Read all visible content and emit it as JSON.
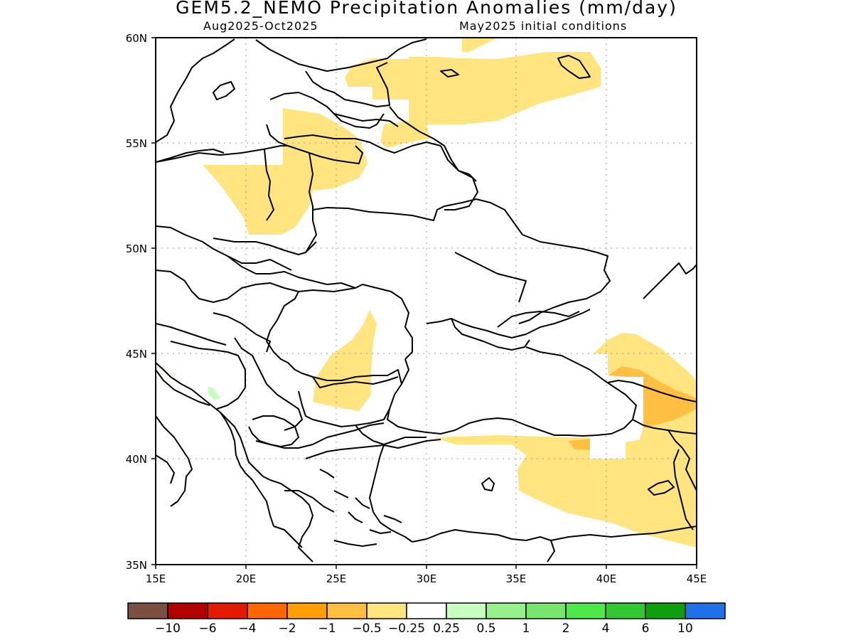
{
  "title": "GEM5.2_NEMO Precipitation Anomalies (mm/day)",
  "subtitle_left": "Aug2025-Oct2025",
  "subtitle_right": "May2025 initial conditions",
  "map": {
    "lon_range": [
      15,
      45
    ],
    "lat_range": [
      35,
      60
    ],
    "lon_ticks": [
      "15E",
      "20E",
      "25E",
      "30E",
      "35E",
      "40E",
      "45E"
    ],
    "lat_ticks": [
      "60N",
      "55N",
      "50N",
      "45N",
      "40N",
      "35N"
    ],
    "grid": true
  },
  "colorbar": {
    "colors": [
      "#7a5043",
      "#b30000",
      "#e31a00",
      "#ff6600",
      "#ff9f00",
      "#ffbf40",
      "#ffe480",
      "#ffffff",
      "#c6ffc0",
      "#96f08c",
      "#78e66e",
      "#4ee84a",
      "#32c832",
      "#0ca00c",
      "#2070e8"
    ],
    "labels": [
      "-10",
      "-6",
      "-4",
      "-2",
      "-1",
      "-0.5",
      "-0.25",
      "0.25",
      "0.5",
      "1",
      "2",
      "4",
      "6",
      "10"
    ]
  },
  "colors": {
    "light_orange": "#ffe480",
    "medium_orange": "#ffbf40",
    "light_green": "#c6ffc0"
  }
}
